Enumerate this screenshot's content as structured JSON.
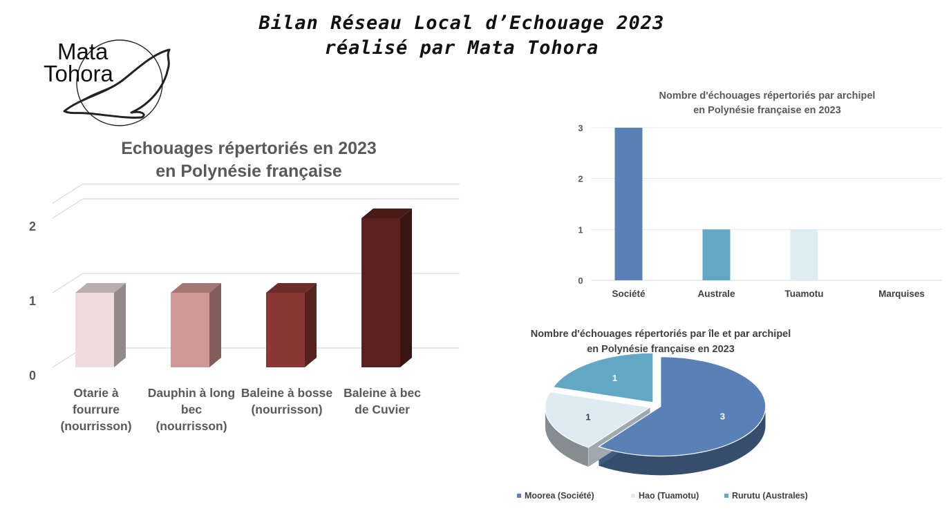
{
  "header": {
    "line1": "Bilan Réseau Local d’Echouage 2023",
    "line2": "réalisé par Mata Tohora"
  },
  "logo": {
    "line1": "Mata",
    "line2": "Tohora"
  },
  "chart_data": [
    {
      "type": "bar",
      "title": "Echouages répertoriés en 2023 en Polynésie française",
      "title_lines": [
        "Echouages répertoriés en 2023",
        "en Polynésie française"
      ],
      "categories": [
        "Otarie à fourrure (nourrisson)",
        "Dauphin à long bec (nourrisson)",
        "Baleine à bosse (nourrisson)",
        "Baleine à bec de Cuvier"
      ],
      "category_lines": [
        [
          "Otarie à",
          "fourrure",
          "(nourrisson)"
        ],
        [
          "Dauphin à long",
          "bec",
          "(nourrisson)"
        ],
        [
          "Baleine à bosse",
          "(nourrisson)"
        ],
        [
          "Baleine à bec",
          "de Cuvier"
        ]
      ],
      "values": [
        1,
        1,
        1,
        2
      ],
      "colors": [
        "#f0dcdc",
        "#d09894",
        "#8a3834",
        "#5c2220"
      ],
      "yticks": [
        0,
        1,
        2
      ],
      "ylim": [
        0,
        2.2
      ],
      "grid": true
    },
    {
      "type": "bar",
      "title": "Nombre d'échouages répertoriés par archipel en Polynésie française en 2023",
      "title_lines": [
        "Nombre d'échouages répertoriés par archipel",
        "en Polynésie française en 2023"
      ],
      "categories": [
        "Société",
        "Australe",
        "Tuamotu",
        "Marquises"
      ],
      "values": [
        3,
        1,
        1,
        0
      ],
      "colors": [
        "#5a80b8",
        "#62a8c4",
        "#deedf4",
        "#c8c8c8"
      ],
      "yticks": [
        0,
        1,
        2,
        3
      ],
      "ylim": [
        0,
        3
      ],
      "grid": true
    },
    {
      "type": "pie",
      "title": "Nombre d'échouages répertoriés par île et par archipel en Polynésie française en 2023",
      "title_lines": [
        "Nombre d'échouages répertoriés par île et par archipel",
        "en Polynésie française en 2023"
      ],
      "labels": [
        "Moorea (Société)",
        "Hao (Tuamotu)",
        "Rurutu (Australes)"
      ],
      "values": [
        3,
        1,
        1
      ],
      "colors": [
        "#5a80b8",
        "#deebf2",
        "#62a8c4"
      ],
      "legend_position": "bottom"
    }
  ]
}
